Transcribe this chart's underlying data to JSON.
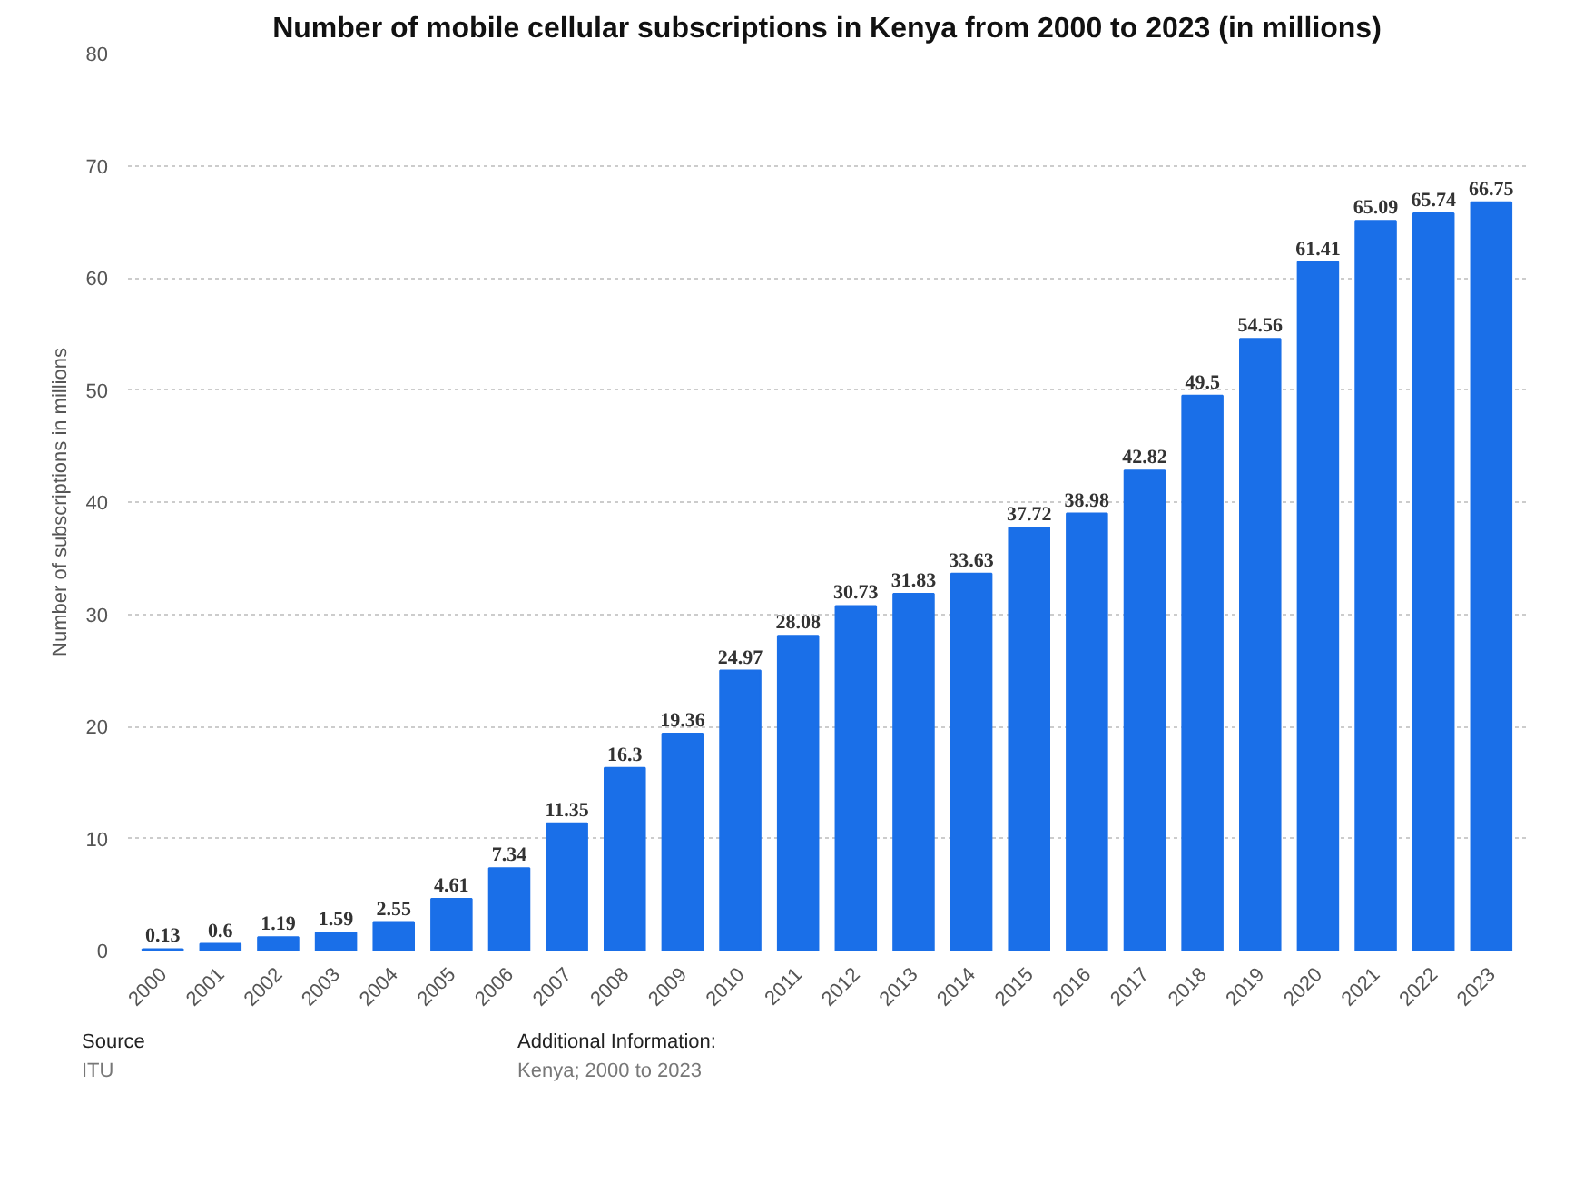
{
  "chart_data": {
    "type": "bar",
    "title": "Number of mobile cellular subscriptions in Kenya from 2000 to 2023 (in millions)",
    "ylabel": "Number of subscriptions in millions",
    "categories": [
      "2000",
      "2001",
      "2002",
      "2003",
      "2004",
      "2005",
      "2006",
      "2007",
      "2008",
      "2009",
      "2010",
      "2011",
      "2012",
      "2013",
      "2014",
      "2015",
      "2016",
      "2017",
      "2018",
      "2019",
      "2020",
      "2021",
      "2022",
      "2023"
    ],
    "values": [
      0.13,
      0.6,
      1.19,
      1.59,
      2.55,
      4.61,
      7.34,
      11.35,
      16.3,
      19.36,
      24.97,
      28.08,
      30.73,
      31.83,
      33.63,
      37.72,
      38.98,
      42.82,
      49.5,
      54.56,
      61.41,
      65.09,
      65.74,
      66.75
    ],
    "color": "#1a6fe8",
    "ylim": [
      0,
      80
    ],
    "yticks": [
      0,
      10,
      20,
      30,
      40,
      50,
      60,
      70,
      80
    ],
    "grid": "y",
    "data_labels": true,
    "annotations": [
      "Source",
      "ITU",
      "Additional Information:",
      "Kenya; 2000 to 2023"
    ]
  }
}
